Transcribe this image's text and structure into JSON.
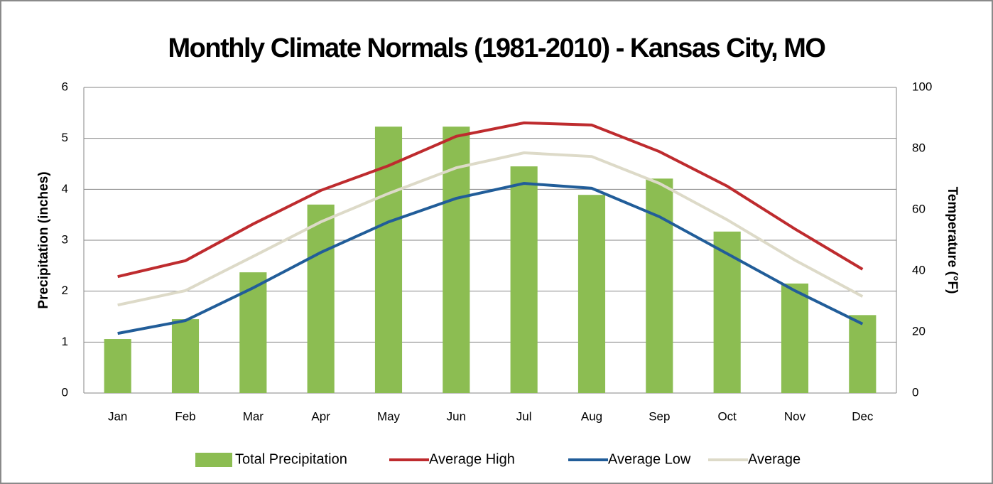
{
  "chart_data": {
    "type": "bar-line",
    "title": "Monthly Climate Normals (1981-2010) - Kansas City, MO",
    "y_label": "Precipitation (inches)",
    "y2_label": "Temperature (°F)",
    "categories": [
      "Jan",
      "Feb",
      "Mar",
      "Apr",
      "May",
      "Jun",
      "Jul",
      "Aug",
      "Sep",
      "Oct",
      "Nov",
      "Dec"
    ],
    "ylim": [
      0,
      6
    ],
    "yticks": [
      0,
      1,
      2,
      3,
      4,
      5,
      6
    ],
    "y2lim": [
      0,
      100
    ],
    "y2ticks": [
      0,
      20,
      40,
      60,
      80,
      100
    ],
    "grid": true,
    "legend": "bottom",
    "series": [
      {
        "name": "Total Precipitation",
        "type": "bar",
        "color": "#8cbd52",
        "values": [
          1.06,
          1.45,
          2.37,
          3.7,
          5.23,
          5.23,
          4.45,
          3.89,
          4.21,
          3.17,
          2.15,
          1.53
        ]
      },
      {
        "name": "Average High",
        "type": "line",
        "axis": "y2",
        "color": "#be2b2e",
        "values": [
          38.1,
          43.3,
          55.3,
          66.3,
          74.4,
          84,
          88.4,
          87.7,
          79,
          67.7,
          53.7,
          40.5
        ]
      },
      {
        "name": "Average Low",
        "type": "line",
        "axis": "y2",
        "color": "#215d99",
        "values": [
          19.5,
          23.7,
          34.4,
          46,
          56,
          63.7,
          68.6,
          67,
          57.7,
          45.6,
          33.5,
          22.6
        ]
      },
      {
        "name": "Average",
        "type": "line",
        "axis": "y2",
        "color": "#dddac8",
        "values": [
          28.8,
          33.5,
          44.7,
          56,
          65.3,
          73.7,
          78.6,
          77.4,
          68.6,
          56.7,
          43.5,
          31.6
        ]
      }
    ]
  }
}
